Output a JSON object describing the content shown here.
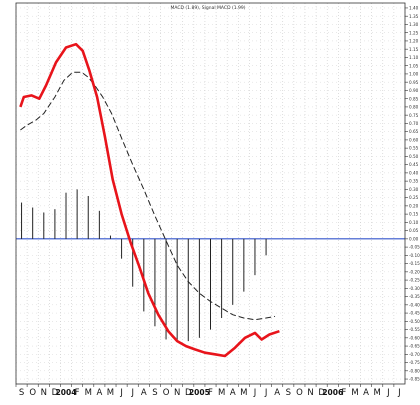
{
  "chart_data": {
    "type": "line",
    "title": "MACD (1.89), Signal MACD (1.99)",
    "x_ticks": [
      "S",
      "O",
      "N",
      "D",
      "2004",
      "F",
      "M",
      "A",
      "M",
      "J",
      "J",
      "A",
      "S",
      "O",
      "N",
      "D",
      "2005",
      "F",
      "M",
      "A",
      "M",
      "J",
      "J",
      "A",
      "S",
      "O",
      "N",
      "D",
      "2006",
      "F",
      "M",
      "A",
      "M",
      "J",
      "J"
    ],
    "bold_ticks": [
      "2004",
      "2005",
      "2006"
    ],
    "y_ticks": [
      1.4,
      1.35,
      1.3,
      1.25,
      1.2,
      1.15,
      1.1,
      1.05,
      1.0,
      0.95,
      0.9,
      0.85,
      0.8,
      0.75,
      0.7,
      0.65,
      0.6,
      0.55,
      0.5,
      0.45,
      0.4,
      0.35,
      0.3,
      0.25,
      0.2,
      0.15,
      0.1,
      0.05,
      0.0,
      -0.05,
      -0.1,
      -0.15,
      -0.2,
      -0.25,
      -0.3,
      -0.35,
      -0.4,
      -0.45,
      -0.5,
      -0.55,
      -0.6,
      -0.65,
      -0.7,
      -0.75,
      -0.8,
      -0.85
    ],
    "ylim": [
      -0.88,
      1.43
    ],
    "x_index_range": [
      0,
      34
    ],
    "grid": true,
    "zero_line": 0,
    "colors": {
      "macd": "#e8141b",
      "signal": "#222222",
      "histogram": "#222222",
      "zero_line": "#3355cc",
      "grid": "#c8c8c8"
    },
    "series": [
      {
        "style": "solid",
        "x": [
          -0.1,
          0.2,
          0.9,
          1.6,
          2.2,
          3.1,
          4.0,
          4.9,
          5.5,
          6.1,
          6.8,
          7.5,
          8.2,
          9.0,
          9.8,
          10.6,
          11.4,
          12.3,
          13.2,
          14.0,
          14.8,
          15.6,
          16.5,
          17.4,
          18.3,
          19.2,
          20.1,
          21.0,
          21.6,
          22.3,
          23.2
        ],
        "values": [
          0.8,
          0.86,
          0.87,
          0.85,
          0.93,
          1.07,
          1.16,
          1.18,
          1.14,
          1.02,
          0.86,
          0.62,
          0.36,
          0.15,
          -0.02,
          -0.17,
          -0.33,
          -0.46,
          -0.56,
          -0.62,
          -0.65,
          -0.67,
          -0.69,
          -0.7,
          -0.71,
          -0.66,
          -0.6,
          -0.57,
          -0.61,
          -0.58,
          -0.56
        ]
      },
      {
        "style": "dashed",
        "x": [
          -0.1,
          0.5,
          1.3,
          2.0,
          3.0,
          3.8,
          4.6,
          5.4,
          6.0,
          6.6,
          7.3,
          8.1,
          9.0,
          10.0,
          11.0,
          12.0,
          13.0,
          14.0,
          15.0,
          16.0,
          17.0,
          18.0,
          19.0,
          20.0,
          21.0,
          22.0,
          22.8
        ],
        "values": [
          0.66,
          0.69,
          0.72,
          0.76,
          0.86,
          0.96,
          1.01,
          1.01,
          0.98,
          0.93,
          0.86,
          0.76,
          0.61,
          0.45,
          0.3,
          0.14,
          -0.01,
          -0.16,
          -0.26,
          -0.33,
          -0.38,
          -0.42,
          -0.46,
          -0.48,
          -0.49,
          -0.48,
          -0.47
        ]
      }
    ],
    "histogram": {
      "x": [
        0,
        1,
        2,
        3,
        4,
        5,
        6,
        7,
        8,
        9,
        10,
        11,
        12,
        13,
        14,
        15,
        16,
        17,
        18,
        19,
        20,
        21,
        22
      ],
      "values": [
        0.22,
        0.19,
        0.16,
        0.18,
        0.28,
        0.3,
        0.26,
        0.17,
        0.02,
        -0.12,
        -0.29,
        -0.44,
        -0.53,
        -0.61,
        -0.62,
        -0.62,
        -0.6,
        -0.55,
        -0.48,
        -0.4,
        -0.32,
        -0.22,
        -0.1
      ]
    }
  }
}
